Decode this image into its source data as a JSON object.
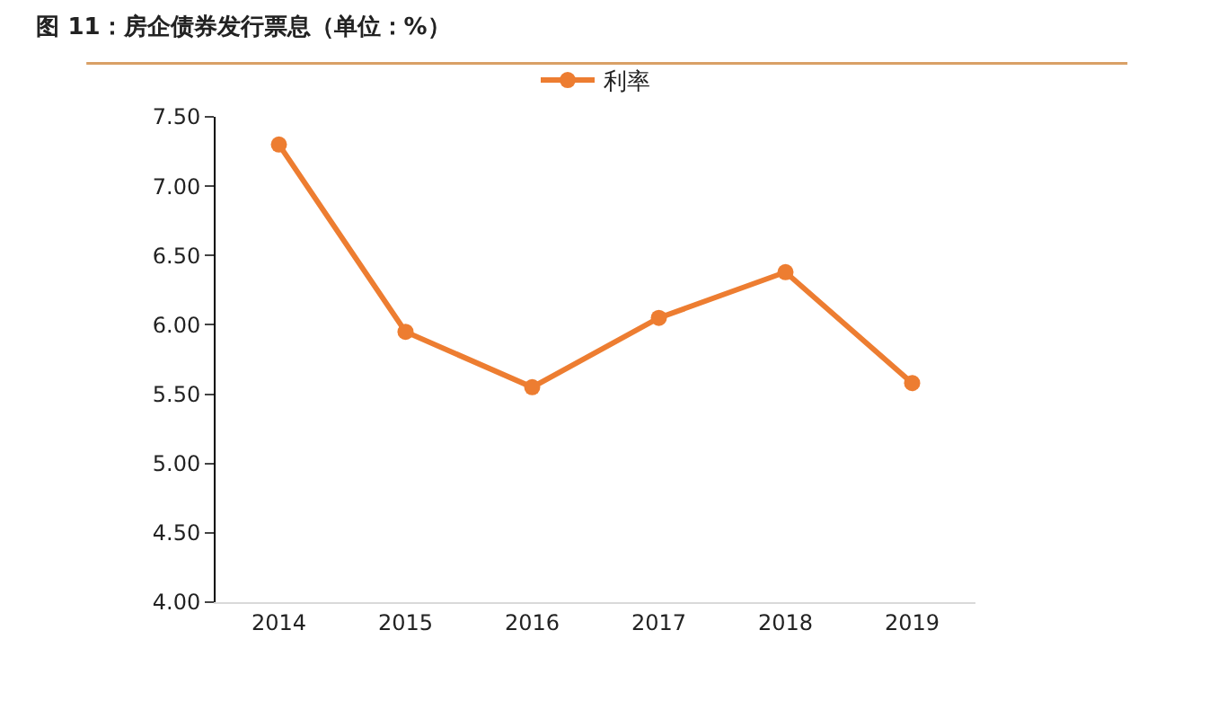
{
  "chart_data": {
    "type": "line",
    "title": "图 11：房企债券发行票息（单位：%）",
    "categories": [
      "2014",
      "2015",
      "2016",
      "2017",
      "2018",
      "2019"
    ],
    "series": [
      {
        "name": "利率",
        "color": "#ed7d31",
        "values": [
          7.3,
          5.95,
          5.55,
          6.05,
          6.38,
          5.58
        ]
      }
    ],
    "ylim": [
      4.0,
      7.5
    ],
    "yticks": [
      {
        "value": 4.0,
        "label": "4.00"
      },
      {
        "value": 4.5,
        "label": "4.50"
      },
      {
        "value": 5.0,
        "label": "5.00"
      },
      {
        "value": 5.5,
        "label": "5.50"
      },
      {
        "value": 6.0,
        "label": "6.00"
      },
      {
        "value": 6.5,
        "label": "6.50"
      },
      {
        "value": 7.0,
        "label": "7.00"
      },
      {
        "value": 7.5,
        "label": "7.50"
      }
    ],
    "legend": "top",
    "marker": "circle",
    "line_style": "solid"
  }
}
